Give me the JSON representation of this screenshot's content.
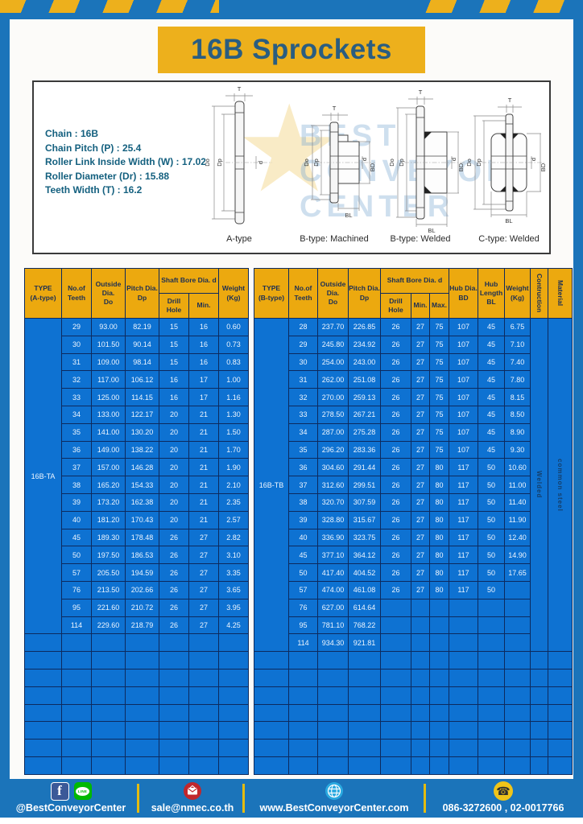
{
  "colors": {
    "page_blue": "#1b74ba",
    "accent_yellow": "#edb01c",
    "cell_blue": "#0e72d2",
    "grid_navy": "#0d2a5e",
    "title_text": "#2a5d80"
  },
  "banner": {
    "title": "16B Sprockets"
  },
  "specs": {
    "lines": [
      "Chain : 16B",
      "Chain Pitch (P) : 25.4",
      "Roller Link Inside Width (W) : 17.02",
      "Roller Diameter (Dr) : 15.88",
      "Teeth Width (T) : 16.2"
    ]
  },
  "diagram": {
    "dims": {
      "t": "T",
      "outside": "Do",
      "pitch": "Dp",
      "bore": "d",
      "hub_dia": "BD",
      "hub_len": "BL"
    },
    "type_labels": [
      "A-type",
      "B-type: Machined",
      "B-type: Welded",
      "C-type: Welded"
    ],
    "watermark": {
      "line1": "BEST",
      "line2": "CONVEYOR",
      "line3": "CENTER",
      "star": "★"
    }
  },
  "tables": {
    "left": {
      "headers": {
        "type": "TYPE\n(A-type)",
        "teeth": "No.of\nTeeth",
        "outside": "Outside\nDia.\nDo",
        "pitch": "Pitch Dia.\nDp",
        "shaft_bore": "Shaft Bore Dia. d",
        "drill": "Drill Hole",
        "min": "Min.",
        "weight": "Weight\n(Kg)"
      },
      "type_value": "16B-TA",
      "empty_rows": 8,
      "rows": [
        [
          "29",
          "93.00",
          "82.19",
          "15",
          "16",
          "0.60"
        ],
        [
          "30",
          "101.50",
          "90.14",
          "15",
          "16",
          "0.73"
        ],
        [
          "31",
          "109.00",
          "98.14",
          "15",
          "16",
          "0.83"
        ],
        [
          "32",
          "117.00",
          "106.12",
          "16",
          "17",
          "1.00"
        ],
        [
          "33",
          "125.00",
          "114.15",
          "16",
          "17",
          "1.16"
        ],
        [
          "34",
          "133.00",
          "122.17",
          "20",
          "21",
          "1.30"
        ],
        [
          "35",
          "141.00",
          "130.20",
          "20",
          "21",
          "1.50"
        ],
        [
          "36",
          "149.00",
          "138.22",
          "20",
          "21",
          "1.70"
        ],
        [
          "37",
          "157.00",
          "146.28",
          "20",
          "21",
          "1.90"
        ],
        [
          "38",
          "165.20",
          "154.33",
          "20",
          "21",
          "2.10"
        ],
        [
          "39",
          "173.20",
          "162.38",
          "20",
          "21",
          "2.35"
        ],
        [
          "40",
          "181.20",
          "170.43",
          "20",
          "21",
          "2.57"
        ],
        [
          "45",
          "189.30",
          "178.48",
          "26",
          "27",
          "2.82"
        ],
        [
          "50",
          "197.50",
          "186.53",
          "26",
          "27",
          "3.10"
        ],
        [
          "57",
          "205.50",
          "194.59",
          "26",
          "27",
          "3.35"
        ],
        [
          "76",
          "213.50",
          "202.66",
          "26",
          "27",
          "3.65"
        ],
        [
          "95",
          "221.60",
          "210.72",
          "26",
          "27",
          "3.95"
        ],
        [
          "114",
          "229.60",
          "218.79",
          "26",
          "27",
          "4.25"
        ]
      ]
    },
    "right": {
      "headers": {
        "type": "TYPE\n(B-type)",
        "teeth": "No.of\nTeeth",
        "outside": "Outside\nDia.\nDo",
        "pitch": "Pitch Dia.\nDp",
        "shaft_bore": "Shaft Bore Dia. d",
        "drill": "Drill Hole",
        "min": "Min.",
        "max": "Max.",
        "hub_dia": "Hub Dia.\nBD",
        "hub_length": "Hub\nLength\nBL",
        "weight": "Weight\n(Kg)",
        "construction": "Contruction",
        "material": "Material"
      },
      "type_value": "16B-TB",
      "construction": "Welded",
      "material": "common steel",
      "empty_rows": 7,
      "rows": [
        [
          "28",
          "237.70",
          "226.85",
          "26",
          "27",
          "75",
          "107",
          "45",
          "6.75"
        ],
        [
          "29",
          "245.80",
          "234.92",
          "26",
          "27",
          "75",
          "107",
          "45",
          "7.10"
        ],
        [
          "30",
          "254.00",
          "243.00",
          "26",
          "27",
          "75",
          "107",
          "45",
          "7.40"
        ],
        [
          "31",
          "262.00",
          "251.08",
          "26",
          "27",
          "75",
          "107",
          "45",
          "7.80"
        ],
        [
          "32",
          "270.00",
          "259.13",
          "26",
          "27",
          "75",
          "107",
          "45",
          "8.15"
        ],
        [
          "33",
          "278.50",
          "267.21",
          "26",
          "27",
          "75",
          "107",
          "45",
          "8.50"
        ],
        [
          "34",
          "287.00",
          "275.28",
          "26",
          "27",
          "75",
          "107",
          "45",
          "8.90"
        ],
        [
          "35",
          "296.20",
          "283.36",
          "26",
          "27",
          "75",
          "107",
          "45",
          "9.30"
        ],
        [
          "36",
          "304.60",
          "291.44",
          "26",
          "27",
          "80",
          "117",
          "50",
          "10.60"
        ],
        [
          "37",
          "312.60",
          "299.51",
          "26",
          "27",
          "80",
          "117",
          "50",
          "11.00"
        ],
        [
          "38",
          "320.70",
          "307.59",
          "26",
          "27",
          "80",
          "117",
          "50",
          "11.40"
        ],
        [
          "39",
          "328.80",
          "315.67",
          "26",
          "27",
          "80",
          "117",
          "50",
          "11.90"
        ],
        [
          "40",
          "336.90",
          "323.75",
          "26",
          "27",
          "80",
          "117",
          "50",
          "12.40"
        ],
        [
          "45",
          "377.10",
          "364.12",
          "26",
          "27",
          "80",
          "117",
          "50",
          "14.90"
        ],
        [
          "50",
          "417.40",
          "404.52",
          "26",
          "27",
          "80",
          "117",
          "50",
          "17.65"
        ],
        [
          "57",
          "474.00",
          "461.08",
          "26",
          "27",
          "80",
          "117",
          "50",
          ""
        ],
        [
          "76",
          "627.00",
          "614.64",
          "",
          "",
          "",
          "",
          "",
          ""
        ],
        [
          "95",
          "781.10",
          "768.22",
          "",
          "",
          "",
          "",
          "",
          ""
        ],
        [
          "114",
          "934.30",
          "921.81",
          "",
          "",
          "",
          "",
          "",
          ""
        ]
      ]
    }
  },
  "footer": {
    "facebook_label": "f",
    "line_label": "LINE",
    "social_text": "@BestConveyorCenter",
    "email": "sale@nmec.co.th",
    "website": "www.BestConveyorCenter.com",
    "phones": "086-3272600 , 02-0017766",
    "phone_glyph": "☎"
  }
}
